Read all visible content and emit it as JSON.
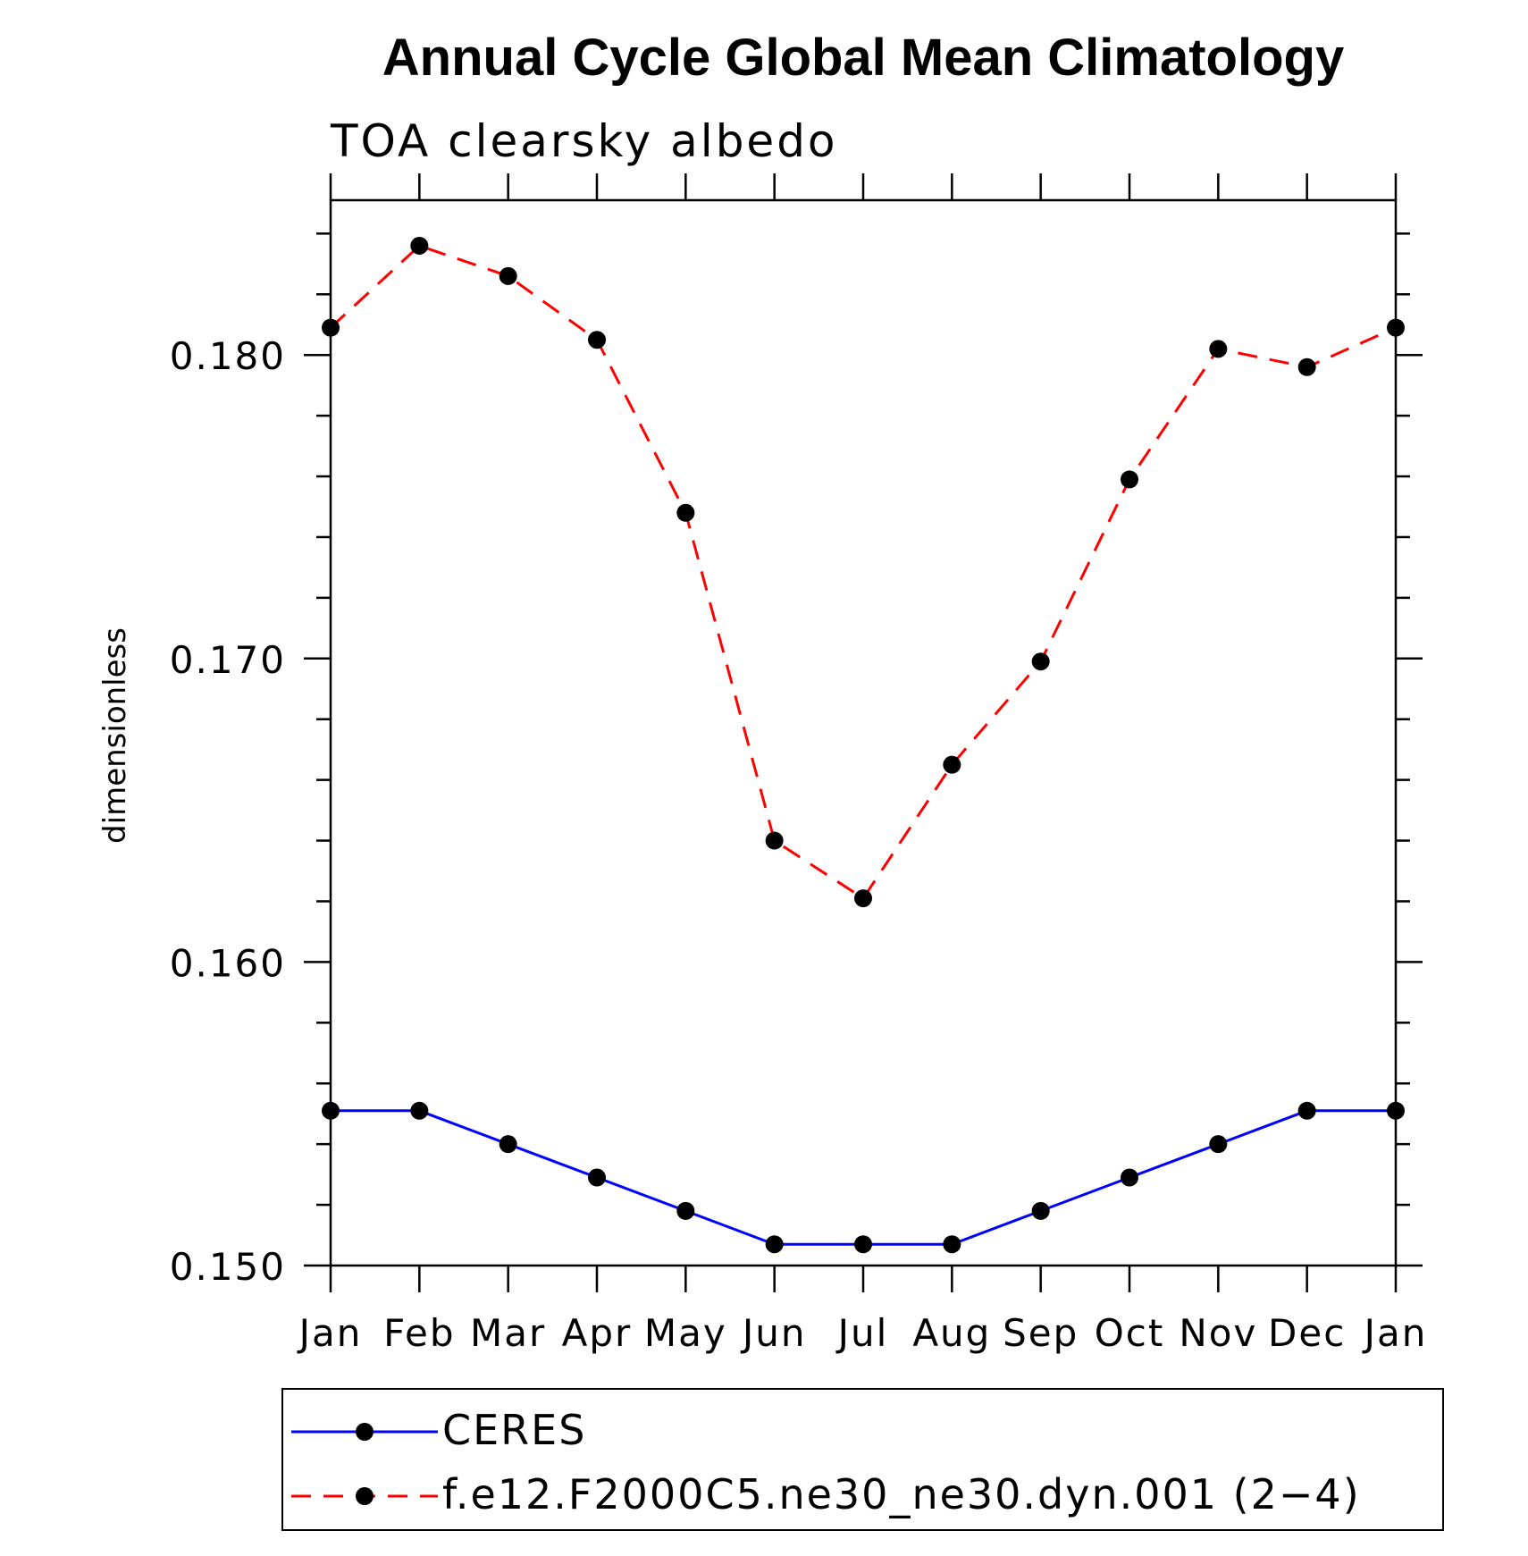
{
  "chart_data": {
    "type": "line",
    "title": "Annual Cycle Global Mean Climatology",
    "subtitle": "TOA clearsky albedo",
    "xlabel": "",
    "ylabel": "dimensionless",
    "categories": [
      "Jan",
      "Feb",
      "Mar",
      "Apr",
      "May",
      "Jun",
      "Jul",
      "Aug",
      "Sep",
      "Oct",
      "Nov",
      "Dec",
      "Jan"
    ],
    "ylim": [
      0.15,
      0.1851
    ],
    "yticks": [
      {
        "value": 0.15,
        "label": "0.150"
      },
      {
        "value": 0.16,
        "label": "0.160"
      },
      {
        "value": 0.17,
        "label": "0.170"
      },
      {
        "value": 0.18,
        "label": "0.180"
      }
    ],
    "grid": false,
    "legend_position": "bottom",
    "series": [
      {
        "name": "CERES",
        "color": "#0000ff",
        "line_style": "solid",
        "marker": "filled-circle",
        "values": [
          0.1551,
          0.1551,
          0.154,
          0.1529,
          0.1518,
          0.1507,
          0.1507,
          0.1507,
          0.1518,
          0.1529,
          0.154,
          0.1551,
          0.1551
        ]
      },
      {
        "name": "f.e12.F2000C5.ne30_ne30.dyn.001 (2−4)",
        "color": "#ff0000",
        "line_style": "dashed",
        "marker": "filled-circle",
        "values": [
          0.1809,
          0.1836,
          0.1826,
          0.1805,
          0.1748,
          0.164,
          0.1621,
          0.1665,
          0.1699,
          0.1759,
          0.1802,
          0.1796,
          0.1809
        ]
      }
    ]
  }
}
